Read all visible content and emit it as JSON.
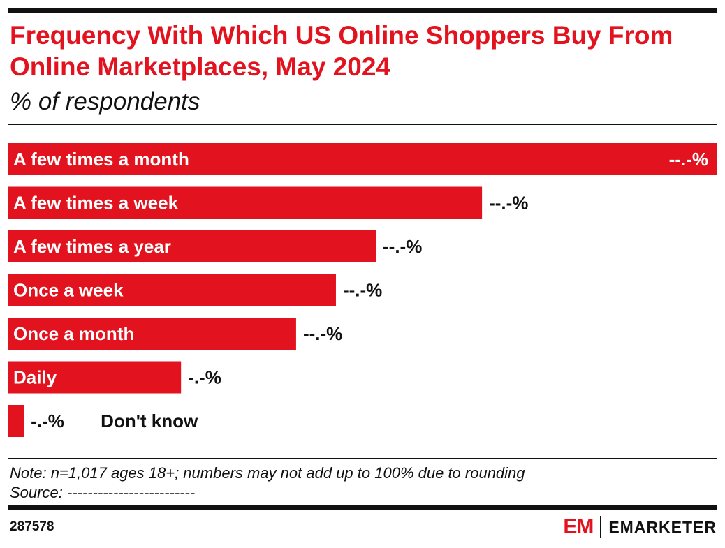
{
  "header": {
    "title": "Frequency With Which US Online Shoppers Buy From Online Marketplaces, May 2024",
    "subtitle": "% of respondents"
  },
  "chart_data": {
    "type": "bar",
    "orientation": "horizontal",
    "categories": [
      "A few times a month",
      "A few times a week",
      "A few times a year",
      "Once a week",
      "Once a month",
      "Daily",
      "Don't know"
    ],
    "values": [
      32.0,
      21.4,
      16.6,
      14.8,
      13.0,
      7.8,
      0.7
    ],
    "value_labels": [
      "--.-%",
      "--.-%",
      "--.-%",
      "--.-%",
      "--.-%",
      "-.-%",
      "-.-%"
    ],
    "xlim": [
      0,
      32.0
    ],
    "bar_color": "#e2131e",
    "grid": false,
    "legend": "none"
  },
  "footer": {
    "note": "Note: n=1,017 ages 18+; numbers may not add up to 100% due to rounding",
    "source": "Source: -------------------------",
    "chart_id": "287578",
    "logo_mark": "EM",
    "logo_word": "EMARKETER"
  },
  "colors": {
    "accent": "#e2131e",
    "text": "#111111"
  }
}
